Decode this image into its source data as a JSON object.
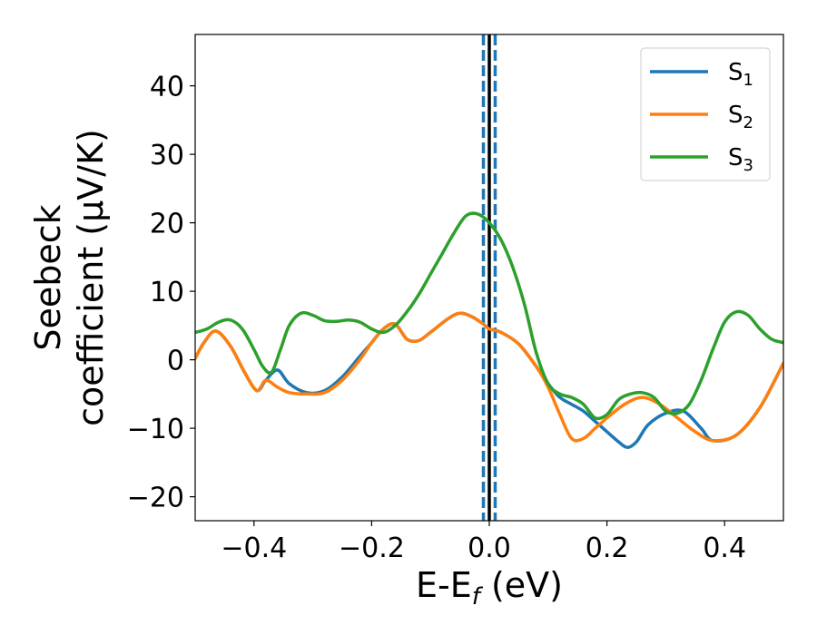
{
  "chart_data": {
    "type": "line",
    "xlabel": "E-E",
    "xlabel_sub": "f",
    "xlabel_unit": " (eV)",
    "ylabel_line1": "Seebeck",
    "ylabel_line2": "coefficient  (μV/K)",
    "xlim": [
      -0.5,
      0.5
    ],
    "ylim": [
      -23.5,
      47.5
    ],
    "xticks": [
      -0.4,
      -0.2,
      0.0,
      0.2,
      0.4
    ],
    "xtick_labels": [
      "−0.4",
      "−0.2",
      "0.0",
      "0.2",
      "0.4"
    ],
    "yticks": [
      -20,
      -10,
      0,
      10,
      20,
      30,
      40
    ],
    "ytick_labels": [
      "−20",
      "−10",
      "0",
      "10",
      "20",
      "30",
      "40"
    ],
    "grid": false,
    "legend_position": "top-right",
    "vlines": [
      {
        "x": 0.0,
        "color": "#000000",
        "style": "solid"
      },
      {
        "x": -0.01,
        "color": "#1f77b4",
        "style": "dashed"
      },
      {
        "x": 0.01,
        "color": "#1f77b4",
        "style": "dashed"
      }
    ],
    "series": [
      {
        "name": "S",
        "sub": "1",
        "color": "#1f77b4",
        "x": [
          -0.5,
          -0.485,
          -0.465,
          -0.44,
          -0.415,
          -0.395,
          -0.38,
          -0.36,
          -0.34,
          -0.31,
          -0.28,
          -0.25,
          -0.22,
          -0.2,
          -0.18,
          -0.16,
          -0.14,
          -0.12,
          -0.1,
          -0.07,
          -0.05,
          -0.03,
          -0.01,
          0.0,
          0.02,
          0.05,
          0.08,
          0.1,
          0.12,
          0.14,
          0.16,
          0.18,
          0.2,
          0.22,
          0.235,
          0.25,
          0.27,
          0.3,
          0.33,
          0.36,
          0.38,
          0.42,
          0.46,
          0.5
        ],
        "values": [
          0.2,
          2.5,
          4.2,
          2.0,
          -2.0,
          -4.5,
          -3.0,
          -1.5,
          -3.5,
          -4.8,
          -4.5,
          -2.5,
          0.5,
          2.5,
          4.5,
          5.2,
          3.0,
          2.8,
          4.0,
          6.0,
          6.8,
          6.3,
          5.2,
          4.5,
          4.0,
          2.3,
          -1.0,
          -3.5,
          -5.5,
          -6.5,
          -7.5,
          -9.0,
          -10.5,
          -12.0,
          -12.8,
          -12.0,
          -9.5,
          -7.8,
          -7.5,
          -10.0,
          -11.8,
          -11.0,
          -7.0,
          -0.5
        ]
      },
      {
        "name": "S",
        "sub": "2",
        "color": "#ff7f0e",
        "x": [
          -0.5,
          -0.485,
          -0.465,
          -0.44,
          -0.415,
          -0.395,
          -0.38,
          -0.36,
          -0.34,
          -0.31,
          -0.28,
          -0.25,
          -0.22,
          -0.2,
          -0.18,
          -0.16,
          -0.14,
          -0.12,
          -0.1,
          -0.07,
          -0.05,
          -0.03,
          -0.01,
          0.0,
          0.02,
          0.05,
          0.08,
          0.1,
          0.12,
          0.14,
          0.16,
          0.18,
          0.2,
          0.23,
          0.26,
          0.29,
          0.32,
          0.35,
          0.38,
          0.42,
          0.46,
          0.5
        ],
        "values": [
          0.2,
          2.5,
          4.2,
          2.0,
          -2.0,
          -4.5,
          -3.0,
          -4.0,
          -4.8,
          -5.0,
          -4.8,
          -3.0,
          0.0,
          2.5,
          4.5,
          5.2,
          3.0,
          2.8,
          4.0,
          6.0,
          6.8,
          6.3,
          5.2,
          4.5,
          4.0,
          2.3,
          -1.0,
          -4.0,
          -8.0,
          -11.5,
          -11.5,
          -10.0,
          -8.5,
          -6.5,
          -5.5,
          -6.5,
          -8.5,
          -10.5,
          -11.8,
          -11.0,
          -7.0,
          -0.5
        ]
      },
      {
        "name": "S",
        "sub": "3",
        "color": "#2ca02c",
        "x": [
          -0.5,
          -0.48,
          -0.46,
          -0.44,
          -0.42,
          -0.4,
          -0.385,
          -0.37,
          -0.355,
          -0.34,
          -0.32,
          -0.3,
          -0.28,
          -0.26,
          -0.24,
          -0.22,
          -0.2,
          -0.18,
          -0.16,
          -0.14,
          -0.12,
          -0.1,
          -0.08,
          -0.06,
          -0.04,
          -0.02,
          0.0,
          0.02,
          0.04,
          0.06,
          0.08,
          0.1,
          0.12,
          0.14,
          0.16,
          0.18,
          0.2,
          0.22,
          0.24,
          0.26,
          0.28,
          0.3,
          0.32,
          0.34,
          0.36,
          0.38,
          0.4,
          0.42,
          0.44,
          0.46,
          0.48,
          0.5
        ],
        "values": [
          4.0,
          4.5,
          5.5,
          5.8,
          4.5,
          1.5,
          -1.0,
          -1.8,
          1.5,
          5.0,
          6.8,
          6.5,
          5.7,
          5.6,
          5.8,
          5.5,
          4.5,
          4.0,
          5.0,
          7.0,
          9.5,
          12.5,
          15.5,
          18.5,
          21.0,
          21.3,
          20.0,
          17.5,
          13.5,
          8.0,
          1.0,
          -3.5,
          -5.0,
          -5.5,
          -6.5,
          -8.5,
          -8.0,
          -5.8,
          -5.0,
          -4.8,
          -5.5,
          -7.5,
          -7.8,
          -6.5,
          -3.0,
          1.5,
          5.5,
          7.0,
          6.5,
          4.5,
          3.0,
          2.5
        ]
      }
    ]
  }
}
